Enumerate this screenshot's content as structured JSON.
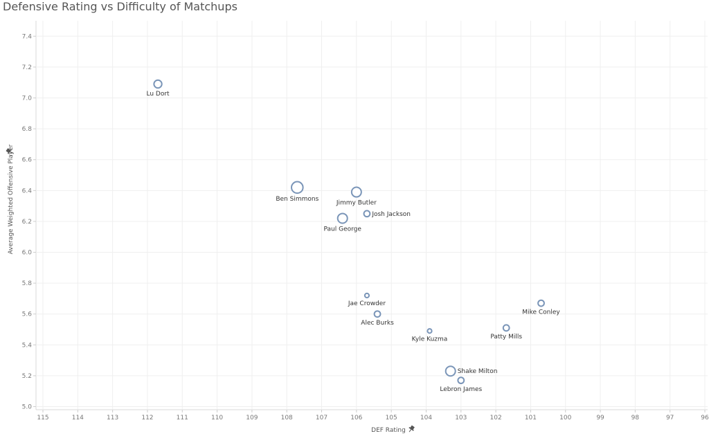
{
  "chart_data": {
    "type": "scatter",
    "title": "Defensive Rating vs Difficulty of Matchups",
    "xlabel": "DEF Rating",
    "ylabel": "Average Weighted Offensive Player",
    "xlim": [
      115,
      96
    ],
    "x_reversed": true,
    "ylim": [
      4.98,
      7.5
    ],
    "x_ticks": [
      "115",
      "114",
      "113",
      "112",
      "111",
      "110",
      "109",
      "108",
      "107",
      "106",
      "105",
      "104",
      "103",
      "102",
      "101",
      "100",
      "99",
      "98",
      "97",
      "96"
    ],
    "y_ticks": [
      "5.0",
      "5.2",
      "5.4",
      "5.6",
      "5.8",
      "6.0",
      "6.2",
      "6.4",
      "6.6",
      "6.8",
      "7.0",
      "7.2",
      "7.4"
    ],
    "grid": true,
    "marker_color": "#7a95b8",
    "points": [
      {
        "name": "Lu Dort",
        "x": 111.7,
        "y": 7.09,
        "size": 3,
        "label_pos": "below"
      },
      {
        "name": "Ben Simmons",
        "x": 107.7,
        "y": 6.42,
        "size": 5,
        "label_pos": "below"
      },
      {
        "name": "Jimmy Butler",
        "x": 106.0,
        "y": 6.39,
        "size": 4,
        "label_pos": "below"
      },
      {
        "name": "Josh Jackson",
        "x": 105.7,
        "y": 6.25,
        "size": 2,
        "label_pos": "right"
      },
      {
        "name": "Paul George",
        "x": 106.4,
        "y": 6.22,
        "size": 4,
        "label_pos": "below"
      },
      {
        "name": "Jae Crowder",
        "x": 105.7,
        "y": 5.72,
        "size": 1,
        "label_pos": "below"
      },
      {
        "name": "Alec Burks",
        "x": 105.4,
        "y": 5.6,
        "size": 2,
        "label_pos": "below"
      },
      {
        "name": "Mike Conley",
        "x": 100.7,
        "y": 5.67,
        "size": 2,
        "label_pos": "below"
      },
      {
        "name": "Patty Mills",
        "x": 101.7,
        "y": 5.51,
        "size": 2,
        "label_pos": "below"
      },
      {
        "name": "Kyle Kuzma",
        "x": 103.9,
        "y": 5.49,
        "size": 1,
        "label_pos": "below"
      },
      {
        "name": "Shake Milton",
        "x": 103.3,
        "y": 5.23,
        "size": 4,
        "label_pos": "right"
      },
      {
        "name": "Lebron James",
        "x": 103.0,
        "y": 5.17,
        "size": 2,
        "label_pos": "below"
      }
    ]
  },
  "icons": {
    "x_axis_pin": "pin-icon",
    "y_axis_pin": "pin-icon"
  }
}
